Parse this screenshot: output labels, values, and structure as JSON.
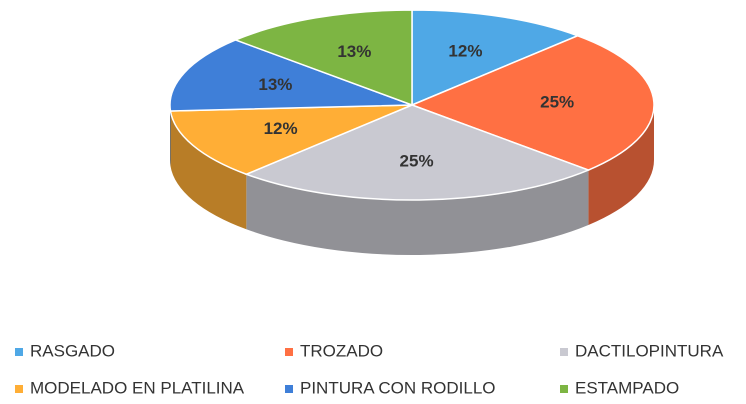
{
  "chart_data": {
    "type": "pie",
    "categories": [
      "RASGADO",
      "TROZADO",
      "DACTILOPINTURA",
      "MODELADO EN PLATILINA",
      "PINTURA CON RODILLO",
      "ESTAMPADO"
    ],
    "values": [
      12,
      25,
      25,
      12,
      13,
      13
    ],
    "value_labels": [
      "12%",
      "25%",
      "25%",
      "12%",
      "13%",
      "13%"
    ],
    "colors": [
      "#4fa8e6",
      "#ff7043",
      "#c9c9d1",
      "#ffae36",
      "#3f7fd8",
      "#7db543"
    ],
    "legend": "bottom"
  }
}
